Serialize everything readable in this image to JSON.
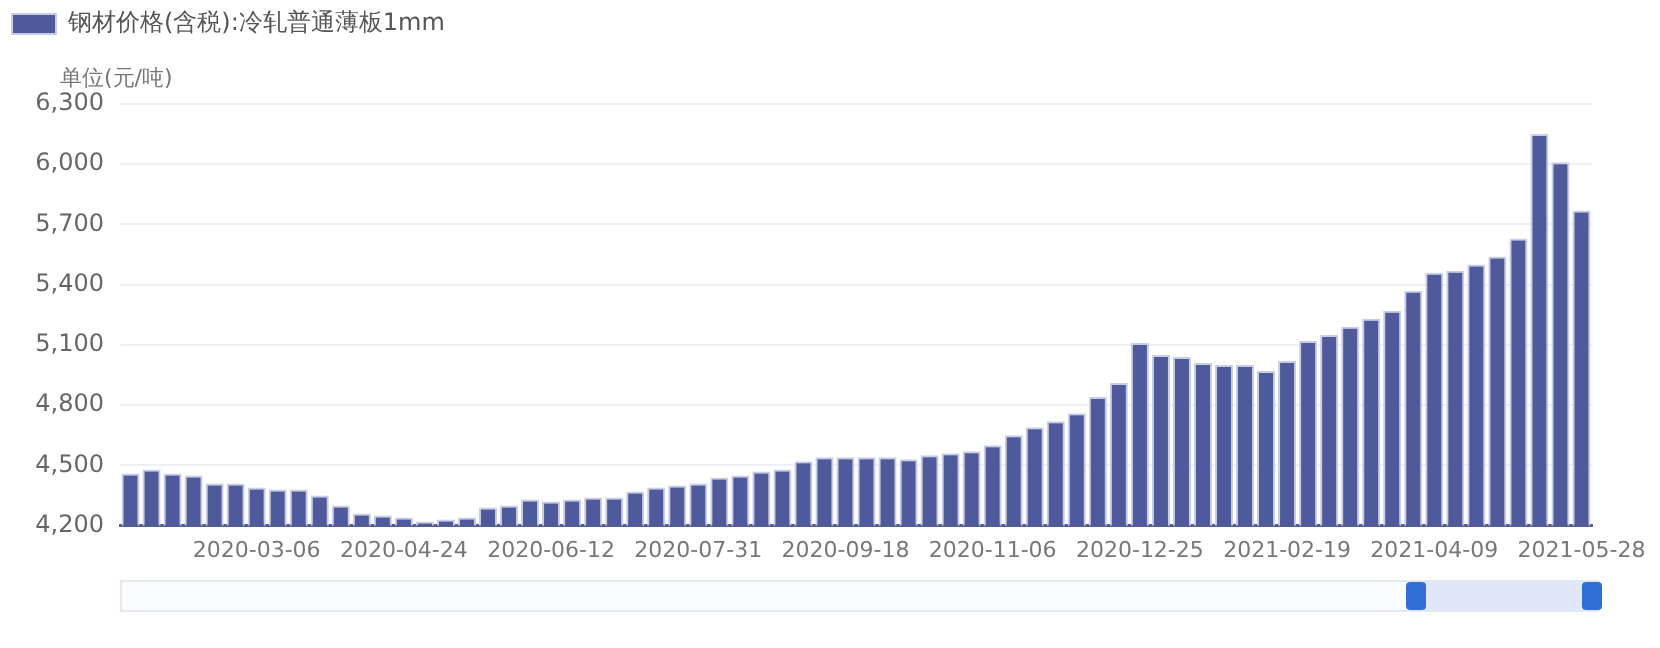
{
  "chart_data": {
    "type": "bar",
    "ylabel": "单位(元/吨)",
    "legend": "top left",
    "grid": "y",
    "categories": [
      null,
      null,
      null,
      null,
      null,
      null,
      "2020-03-06",
      null,
      null,
      null,
      null,
      null,
      null,
      "2020-04-24",
      null,
      null,
      null,
      null,
      null,
      null,
      "2020-06-12",
      null,
      null,
      null,
      null,
      null,
      null,
      "2020-07-31",
      null,
      null,
      null,
      null,
      null,
      null,
      "2020-09-18",
      null,
      null,
      null,
      null,
      null,
      null,
      "2020-11-06",
      null,
      null,
      null,
      null,
      null,
      null,
      "2020-12-25",
      null,
      null,
      null,
      null,
      null,
      null,
      "2021-02-19",
      null,
      null,
      null,
      null,
      null,
      null,
      "2021-04-09",
      null,
      null,
      null,
      null,
      null,
      null,
      "2021-05-28"
    ],
    "series": [
      {
        "name": "钢材价格(含税):冷轧普通薄板1mm",
        "color": "#4e5a9b",
        "values": [
          4460,
          4480,
          4460,
          4450,
          4410,
          4410,
          4390,
          4380,
          4380,
          4350,
          4300,
          4260,
          4250,
          4240,
          4220,
          4230,
          4240,
          4290,
          4300,
          4330,
          4320,
          4330,
          4340,
          4340,
          4370,
          4390,
          4400,
          4410,
          4440,
          4450,
          4470,
          4480,
          4520,
          4540,
          4540,
          4540,
          4540,
          4530,
          4550,
          4560,
          4570,
          4600,
          4650,
          4690,
          4720,
          4760,
          4840,
          4910,
          5110,
          5050,
          5040,
          5010,
          5000,
          5000,
          4970,
          5020,
          5120,
          5150,
          5190,
          5230,
          5270,
          5370,
          5460,
          5470,
          5500,
          5540,
          5630,
          6150,
          6010,
          5770
        ]
      }
    ],
    "ylim": [
      4200,
      6300
    ],
    "yticks": [
      {
        "value": 4200,
        "label": "4,200"
      },
      {
        "value": 4500,
        "label": "4,500"
      },
      {
        "value": 4800,
        "label": "4,800"
      },
      {
        "value": 5100,
        "label": "5,100"
      },
      {
        "value": 5400,
        "label": "5,400"
      },
      {
        "value": 5700,
        "label": "5,700"
      },
      {
        "value": 6000,
        "label": "6,000"
      },
      {
        "value": 6300,
        "label": "6,300"
      }
    ]
  }
}
